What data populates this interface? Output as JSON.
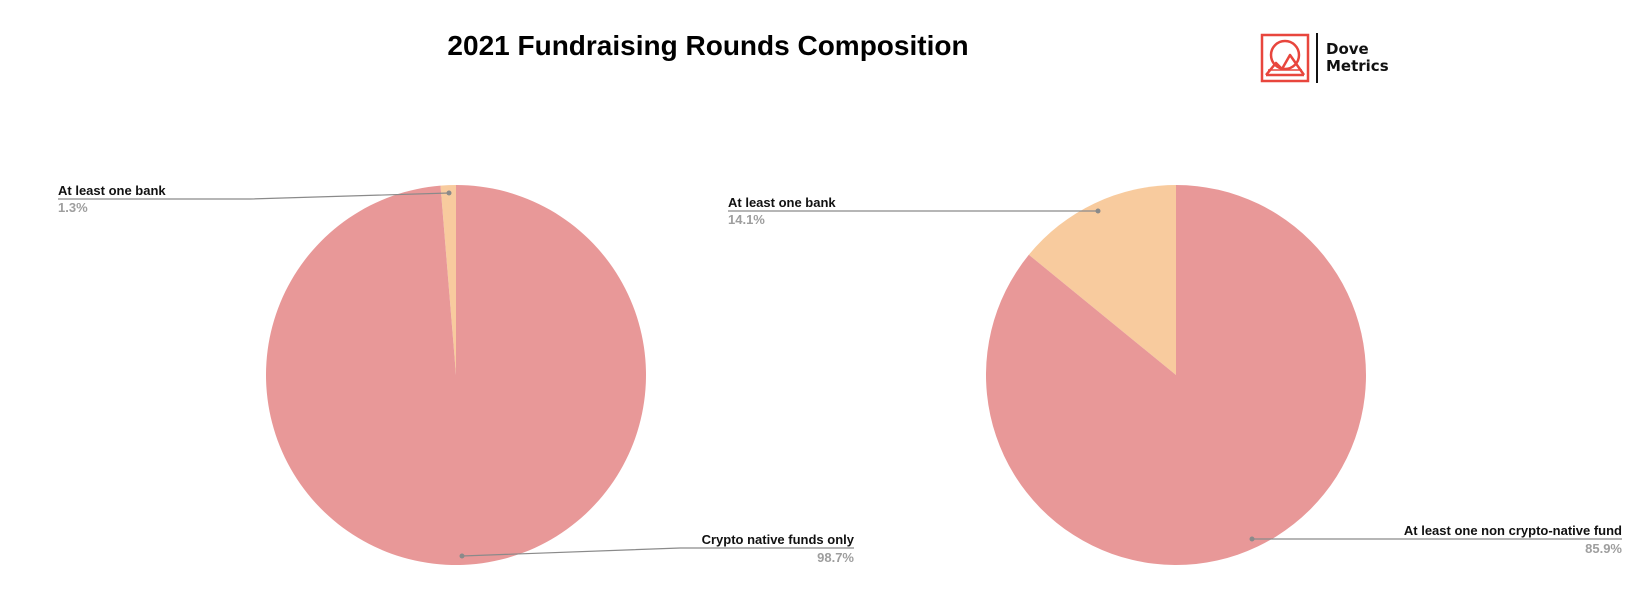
{
  "title": "2021 Fundraising Rounds Composition",
  "brand": {
    "name_line1": "Dove",
    "name_line2": "Metrics",
    "accent_color": "#e8463d"
  },
  "chart_data": [
    {
      "type": "pie",
      "title": "",
      "slices": [
        {
          "label": "At least one bank",
          "value": 1.3,
          "value_label": "1.3%",
          "color": "#f8cb9e"
        },
        {
          "label": "Crypto native funds only",
          "value": 98.7,
          "value_label": "98.7%",
          "color": "#e89898"
        }
      ]
    },
    {
      "type": "pie",
      "title": "",
      "slices": [
        {
          "label": "At least one bank",
          "value": 14.1,
          "value_label": "14.1%",
          "color": "#f8cb9e"
        },
        {
          "label": "At least one non crypto-native fund",
          "value": 85.9,
          "value_label": "85.9%",
          "color": "#e89898"
        }
      ]
    }
  ]
}
